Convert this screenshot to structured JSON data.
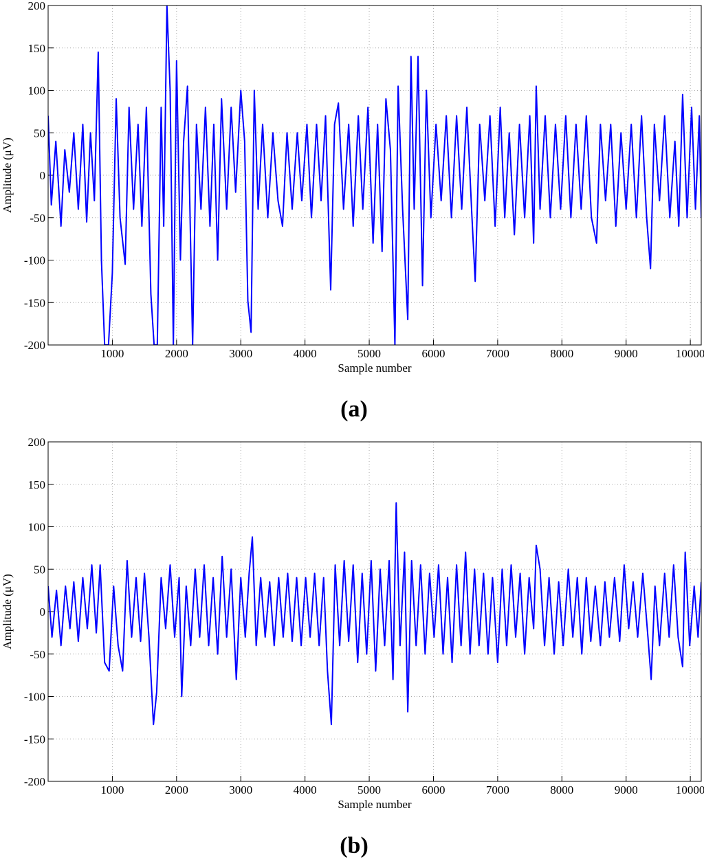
{
  "chart_data": [
    {
      "type": "line",
      "caption": "(a)",
      "xlabel": "Sample number",
      "ylabel": "Amplitude (μV)",
      "color": "#0000ff",
      "grid": true,
      "xlim": [
        0,
        10170
      ],
      "ylim": [
        -200,
        200
      ],
      "xticks": [
        1000,
        2000,
        3000,
        4000,
        5000,
        6000,
        7000,
        8000,
        9000,
        10000
      ],
      "yticks": [
        -200,
        -150,
        -100,
        -50,
        0,
        50,
        100,
        150,
        200
      ],
      "x": [
        0,
        50,
        120,
        200,
        260,
        330,
        400,
        470,
        540,
        600,
        660,
        720,
        780,
        830,
        880,
        940,
        1000,
        1060,
        1120,
        1200,
        1260,
        1330,
        1400,
        1460,
        1530,
        1600,
        1650,
        1700,
        1760,
        1800,
        1850,
        1900,
        1950,
        2000,
        2060,
        2110,
        2170,
        2250,
        2310,
        2380,
        2450,
        2520,
        2580,
        2640,
        2700,
        2780,
        2850,
        2920,
        3000,
        3060,
        3110,
        3160,
        3210,
        3270,
        3340,
        3420,
        3500,
        3580,
        3650,
        3720,
        3800,
        3880,
        3950,
        4030,
        4100,
        4180,
        4250,
        4320,
        4400,
        4460,
        4520,
        4600,
        4680,
        4750,
        4830,
        4900,
        4980,
        5060,
        5130,
        5200,
        5260,
        5330,
        5400,
        5450,
        5520,
        5600,
        5650,
        5700,
        5760,
        5830,
        5890,
        5960,
        6040,
        6120,
        6200,
        6280,
        6360,
        6440,
        6520,
        6600,
        6650,
        6720,
        6800,
        6880,
        6960,
        7040,
        7110,
        7180,
        7260,
        7340,
        7420,
        7500,
        7560,
        7600,
        7660,
        7740,
        7820,
        7900,
        7980,
        8060,
        8140,
        8220,
        8300,
        8380,
        8460,
        8540,
        8600,
        8680,
        8760,
        8840,
        8920,
        9000,
        9080,
        9160,
        9240,
        9320,
        9380,
        9440,
        9520,
        9600,
        9680,
        9760,
        9820,
        9880,
        9950,
        10020,
        10080,
        10140,
        10170
      ],
      "values": [
        70,
        -35,
        40,
        -60,
        30,
        -20,
        50,
        -40,
        60,
        -55,
        50,
        -30,
        145,
        -100,
        -200,
        -200,
        -115,
        90,
        -50,
        -105,
        80,
        -40,
        60,
        -60,
        80,
        -140,
        -200,
        -200,
        80,
        -60,
        200,
        100,
        -200,
        135,
        -100,
        40,
        105,
        -200,
        60,
        -40,
        80,
        -60,
        60,
        -100,
        90,
        -40,
        80,
        -20,
        100,
        40,
        -148,
        -185,
        100,
        -40,
        60,
        -50,
        50,
        -30,
        -60,
        50,
        -40,
        50,
        -30,
        60,
        -50,
        60,
        -30,
        70,
        -135,
        60,
        85,
        -40,
        60,
        -60,
        70,
        -40,
        80,
        -80,
        60,
        -90,
        90,
        30,
        -200,
        105,
        -40,
        -170,
        140,
        -40,
        140,
        -130,
        100,
        -50,
        60,
        -30,
        70,
        -50,
        70,
        -40,
        80,
        -50,
        -125,
        60,
        -30,
        70,
        -60,
        80,
        -50,
        50,
        -70,
        60,
        -50,
        70,
        -80,
        105,
        -40,
        70,
        -50,
        60,
        -40,
        70,
        -50,
        60,
        -40,
        70,
        -50,
        -80,
        60,
        -30,
        60,
        -60,
        50,
        -40,
        60,
        -50,
        70,
        -50,
        -110,
        60,
        -30,
        70,
        -50,
        40,
        -60,
        95,
        -50,
        80,
        -40,
        70,
        -50
      ]
    },
    {
      "type": "line",
      "caption": "(b)",
      "xlabel": "Sample number",
      "ylabel": "Amplitude (μV)",
      "color": "#0000ff",
      "grid": true,
      "xlim": [
        0,
        10170
      ],
      "ylim": [
        -200,
        200
      ],
      "xticks": [
        1000,
        2000,
        3000,
        4000,
        5000,
        6000,
        7000,
        8000,
        9000,
        10000
      ],
      "yticks": [
        -200,
        -150,
        -100,
        -50,
        0,
        50,
        100,
        150,
        200
      ],
      "x": [
        0,
        60,
        130,
        200,
        270,
        340,
        400,
        470,
        540,
        610,
        680,
        750,
        810,
        880,
        950,
        1020,
        1090,
        1160,
        1230,
        1300,
        1370,
        1440,
        1500,
        1570,
        1640,
        1690,
        1760,
        1830,
        1900,
        1970,
        2040,
        2080,
        2150,
        2220,
        2290,
        2360,
        2430,
        2500,
        2570,
        2640,
        2710,
        2780,
        2850,
        2930,
        3000,
        3070,
        3130,
        3180,
        3240,
        3310,
        3380,
        3450,
        3520,
        3590,
        3660,
        3730,
        3800,
        3870,
        3940,
        4010,
        4080,
        4150,
        4220,
        4290,
        4350,
        4410,
        4470,
        4540,
        4610,
        4680,
        4750,
        4820,
        4890,
        4960,
        5030,
        5100,
        5170,
        5240,
        5310,
        5370,
        5420,
        5480,
        5550,
        5600,
        5660,
        5730,
        5800,
        5870,
        5940,
        6010,
        6080,
        6150,
        6220,
        6290,
        6360,
        6430,
        6500,
        6570,
        6640,
        6710,
        6780,
        6850,
        6920,
        7000,
        7070,
        7140,
        7210,
        7280,
        7350,
        7420,
        7490,
        7560,
        7600,
        7660,
        7730,
        7800,
        7880,
        7950,
        8020,
        8100,
        8170,
        8240,
        8310,
        8380,
        8450,
        8520,
        8600,
        8670,
        8740,
        8820,
        8900,
        8970,
        9040,
        9110,
        9180,
        9260,
        9340,
        9390,
        9450,
        9520,
        9600,
        9670,
        9740,
        9810,
        9880,
        9920,
        9990,
        10060,
        10120,
        10170
      ],
      "values": [
        30,
        -30,
        25,
        -40,
        30,
        -20,
        35,
        -35,
        40,
        -20,
        55,
        -25,
        55,
        -60,
        -70,
        30,
        -40,
        -70,
        60,
        -30,
        40,
        -35,
        45,
        -30,
        -133,
        -95,
        40,
        -20,
        55,
        -30,
        40,
        -100,
        30,
        -40,
        50,
        -30,
        55,
        -40,
        40,
        -50,
        65,
        -30,
        50,
        -80,
        40,
        -30,
        45,
        88,
        -40,
        40,
        -30,
        35,
        -40,
        40,
        -30,
        45,
        -35,
        40,
        -40,
        40,
        -30,
        45,
        -40,
        40,
        -70,
        -133,
        55,
        -40,
        60,
        -35,
        55,
        -60,
        45,
        -50,
        60,
        -70,
        50,
        -40,
        60,
        -80,
        128,
        -40,
        70,
        -118,
        60,
        -40,
        55,
        -50,
        45,
        -30,
        55,
        -50,
        40,
        -60,
        55,
        -40,
        70,
        -50,
        50,
        -40,
        45,
        -50,
        40,
        -60,
        50,
        -40,
        55,
        -30,
        45,
        -50,
        40,
        -20,
        78,
        50,
        -40,
        40,
        -50,
        35,
        -40,
        50,
        -30,
        40,
        -50,
        40,
        -35,
        30,
        -40,
        35,
        -30,
        40,
        -35,
        55,
        -20,
        35,
        -30,
        45,
        -30,
        -80,
        30,
        -40,
        45,
        -30,
        55,
        -30,
        -65,
        70,
        -40,
        30,
        -30,
        35
      ]
    }
  ]
}
